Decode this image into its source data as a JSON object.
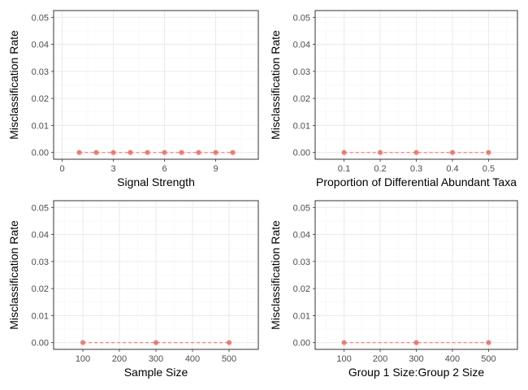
{
  "colors": {
    "series": "#f8766d",
    "grid_major": "#ebebeb",
    "grid_minor": "#f5f5f5",
    "panel_border": "#333333",
    "tick_text": "#4d4d4d"
  },
  "chart_data": [
    {
      "type": "line",
      "xlabel": "Signal Strength",
      "ylabel": "Misclassification Rate",
      "x": [
        1,
        2,
        3,
        4,
        5,
        6,
        7,
        8,
        9,
        10
      ],
      "y": [
        0,
        0,
        0,
        0,
        0,
        0,
        0,
        0,
        0,
        0
      ],
      "xlim": [
        -0.5,
        11.5
      ],
      "ylim": [
        -0.0025,
        0.0525
      ],
      "xticks": [
        0,
        3,
        6,
        9
      ],
      "xtick_labels": [
        "0",
        "3",
        "6",
        "9"
      ],
      "yticks": [
        0,
        0.01,
        0.02,
        0.03,
        0.04,
        0.05
      ],
      "ytick_labels": [
        "0.00",
        "0.01",
        "0.02",
        "0.03",
        "0.04",
        "0.05"
      ],
      "line_style": "dashed",
      "grid": true
    },
    {
      "type": "line",
      "xlabel": "Proportion of Differential Abundant Taxa",
      "ylabel": "Misclassification Rate",
      "x": [
        0.1,
        0.2,
        0.3,
        0.4,
        0.5
      ],
      "y": [
        0,
        0,
        0,
        0,
        0
      ],
      "xlim": [
        0.02,
        0.58
      ],
      "ylim": [
        -0.0025,
        0.0525
      ],
      "xticks": [
        0.1,
        0.2,
        0.3,
        0.4,
        0.5
      ],
      "xtick_labels": [
        "0.1",
        "0.2",
        "0.3",
        "0.4",
        "0.5"
      ],
      "yticks": [
        0,
        0.01,
        0.02,
        0.03,
        0.04,
        0.05
      ],
      "ytick_labels": [
        "0.00",
        "0.01",
        "0.02",
        "0.03",
        "0.04",
        "0.05"
      ],
      "line_style": "dashed",
      "grid": true
    },
    {
      "type": "line",
      "xlabel": "Sample Size",
      "ylabel": "Misclassification Rate",
      "x": [
        100,
        300,
        500
      ],
      "y": [
        0,
        0,
        0
      ],
      "xlim": [
        20,
        580
      ],
      "ylim": [
        -0.0025,
        0.0525
      ],
      "xticks": [
        100,
        200,
        300,
        400,
        500
      ],
      "xtick_labels": [
        "100",
        "200",
        "300",
        "400",
        "500"
      ],
      "yticks": [
        0,
        0.01,
        0.02,
        0.03,
        0.04,
        0.05
      ],
      "ytick_labels": [
        "0.00",
        "0.01",
        "0.02",
        "0.03",
        "0.04",
        "0.05"
      ],
      "line_style": "dashed",
      "grid": true
    },
    {
      "type": "line",
      "xlabel": "Group 1 Size:Group 2 Size",
      "ylabel": "Misclassification Rate",
      "x": [
        100,
        300,
        500
      ],
      "y": [
        0,
        0,
        0
      ],
      "xlim": [
        20,
        580
      ],
      "ylim": [
        -0.0025,
        0.0525
      ],
      "xticks": [
        100,
        200,
        300,
        400,
        500
      ],
      "xtick_labels": [
        "100",
        "200",
        "300",
        "400",
        "500"
      ],
      "yticks": [
        0,
        0.01,
        0.02,
        0.03,
        0.04,
        0.05
      ],
      "ytick_labels": [
        "0.00",
        "0.01",
        "0.02",
        "0.03",
        "0.04",
        "0.05"
      ],
      "line_style": "dashed",
      "grid": true
    }
  ]
}
